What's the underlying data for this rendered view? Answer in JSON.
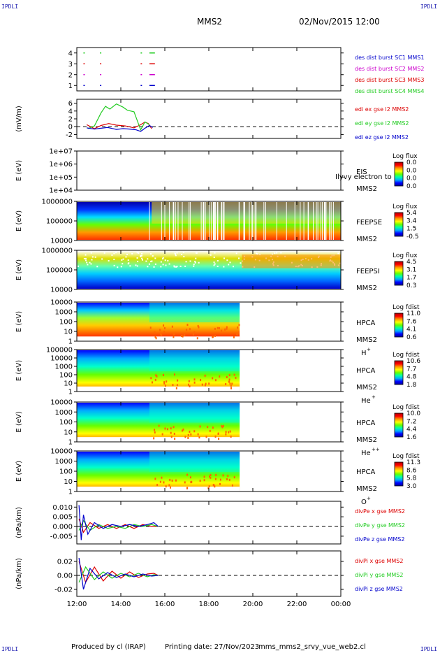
{
  "corners": {
    "tl": "IPDLI",
    "tr": "IPDLI",
    "bl": "IPDLI",
    "br": "IPDLI"
  },
  "header": {
    "spacecraft": "MMS2",
    "datetime": "02/Nov/2015 12:00"
  },
  "footer": {
    "produced": "Produced by cl (IRAP)",
    "printing": "Printing date: 27/Nov/2023",
    "script": "mms_mms2_srvy_vue_web2.cl"
  },
  "colors": {
    "red": "#dd0000",
    "green": "#22cc22",
    "blue": "#0000cc",
    "magenta": "#cc00cc",
    "spectrogram": [
      "#000099",
      "#0000ff",
      "#00aaff",
      "#00ffaa",
      "#66ff00",
      "#ffff00",
      "#ff9900",
      "#ff0000",
      "#b00000"
    ]
  },
  "chart_data": {
    "x_tick_labels": [
      "12:00",
      "14:00",
      "16:00",
      "18:00",
      "20:00",
      "22:00",
      "00:00"
    ],
    "x_ticks_hours": [
      12,
      14,
      16,
      18,
      20,
      22,
      24
    ],
    "x_range_hours": [
      12,
      24
    ],
    "panels": [
      {
        "id": "des-dist",
        "type": "availability",
        "ylabel": "",
        "ytick_labels": [
          "4",
          "3",
          "2",
          "1"
        ],
        "ylim": [
          0.5,
          4.5
        ],
        "legend": [
          {
            "text": "des dist burst SC1 MMS1",
            "color": "blue"
          },
          {
            "text": "des dist burst SC2 MMS2",
            "color": "magenta"
          },
          {
            "text": "des dist burst SC3 MMS3",
            "color": "red"
          },
          {
            "text": "des dist burst SC4 MMS4",
            "color": "green"
          }
        ],
        "rows": [
          {
            "y": 4,
            "color": "green",
            "intervals": [
              [
                12.3,
                12.35
              ],
              [
                13.05,
                13.1
              ],
              [
                14.9,
                14.95
              ],
              [
                15.3,
                15.55
              ]
            ]
          },
          {
            "y": 3,
            "color": "red",
            "intervals": [
              [
                12.3,
                12.35
              ],
              [
                13.05,
                13.1
              ],
              [
                14.9,
                14.95
              ],
              [
                15.3,
                15.55
              ]
            ]
          },
          {
            "y": 2,
            "color": "magenta",
            "intervals": [
              [
                12.3,
                12.35
              ],
              [
                13.05,
                13.1
              ],
              [
                14.9,
                14.95
              ],
              [
                15.3,
                15.55
              ]
            ]
          },
          {
            "y": 1,
            "color": "blue",
            "intervals": [
              [
                12.3,
                12.35
              ],
              [
                13.05,
                13.1
              ],
              [
                14.9,
                14.95
              ],
              [
                15.3,
                15.55
              ]
            ]
          }
        ]
      },
      {
        "id": "edi",
        "type": "line",
        "ylabel": "(mV/m)",
        "ytick_labels": [
          "6",
          "4",
          "2",
          "0",
          "-2"
        ],
        "ytick_values": [
          6,
          4,
          2,
          0,
          -2
        ],
        "ylim": [
          -3,
          7
        ],
        "zero_line": true,
        "legend": [
          {
            "text": "edi ex gse l2 MMS2",
            "color": "red"
          },
          {
            "text": "edi ey gse l2 MMS2",
            "color": "green"
          },
          {
            "text": "edi ez gse l2 MMS2",
            "color": "blue"
          }
        ],
        "series": [
          {
            "name": "edi ex gse l2 MMS2",
            "color": "red",
            "x": [
              12.45,
              12.8,
              13.1,
              13.45,
              13.8,
              14.2,
              14.6,
              14.9,
              15.1,
              15.25,
              15.4
            ],
            "y": [
              0.5,
              -0.5,
              0.3,
              0.8,
              0.4,
              0.2,
              -0.3,
              0.5,
              1.2,
              0.8,
              -0.5
            ]
          },
          {
            "name": "edi ey gse l2 MMS2",
            "color": "green",
            "x": [
              12.5,
              12.8,
              13.1,
              13.3,
              13.5,
              13.8,
              14.1,
              14.3,
              14.6,
              14.9,
              15.1,
              15.3
            ],
            "y": [
              -0.5,
              0.2,
              3.5,
              5.2,
              4.5,
              5.8,
              5.0,
              4.2,
              3.8,
              -0.8,
              1.2,
              0.5
            ]
          },
          {
            "name": "edi ez gse l2 MMS2",
            "color": "blue",
            "x": [
              12.45,
              12.8,
              13.1,
              13.4,
              13.8,
              14.1,
              14.4,
              14.7,
              14.9,
              15.1,
              15.3,
              15.45
            ],
            "y": [
              -0.3,
              -0.6,
              -0.4,
              -0.2,
              -0.7,
              -0.5,
              -0.6,
              -0.8,
              -1.2,
              -0.4,
              0.3,
              -0.2
            ]
          }
        ]
      },
      {
        "id": "eis",
        "type": "spectrogram",
        "empty": true,
        "ylabel": "E (eV)",
        "ytick_labels": [
          "1e+07",
          "1e+06",
          "1e+05",
          "1e+04"
        ],
        "instrument": "EIS",
        "spacecraft": "MMS2",
        "overlay_text": "Ilyvy electron to",
        "colorbar_title": "Log flux",
        "colorbar_labels": [
          "0.0",
          "0.0",
          "0.0",
          "0.0"
        ]
      },
      {
        "id": "feepse",
        "type": "spectrogram",
        "ylabel": "E (eV)",
        "ytick_labels": [
          "1000000",
          "100000",
          "10000"
        ],
        "instrument": "FEEPSE",
        "spacecraft": "MMS2",
        "colorbar_title": "Log flux",
        "colorbar_labels": [
          "5.4",
          "3.4",
          "1.5",
          "-0.5"
        ],
        "coverage_hours": [
          12,
          24
        ]
      },
      {
        "id": "feepsi",
        "type": "spectrogram",
        "ylabel": "E (eV)",
        "ytick_labels": [
          "1000000",
          "100000",
          "10000"
        ],
        "instrument": "FEEPSI",
        "spacecraft": "MMS2",
        "colorbar_title": "Log flux",
        "colorbar_labels": [
          "4.5",
          "3.1",
          "1.7",
          "0.3"
        ],
        "coverage_hours": [
          12,
          24
        ]
      },
      {
        "id": "hpca-h",
        "type": "spectrogram",
        "ylabel": "E (eV)",
        "ytick_labels": [
          "10000",
          "1000",
          "100",
          "10",
          "1"
        ],
        "instrument": "HPCA",
        "spacecraft": "MMS2",
        "species": "H",
        "species_sup": "+",
        "colorbar_title": "Log fdist",
        "colorbar_labels": [
          "11.0",
          "7.6",
          "4.1",
          "0.6"
        ],
        "coverage_hours": [
          12,
          19.4
        ]
      },
      {
        "id": "hpca-he",
        "type": "spectrogram",
        "ylabel": "E (eV)",
        "ytick_labels": [
          "100000",
          "10000",
          "1000",
          "100",
          "10",
          "1"
        ],
        "instrument": "HPCA",
        "spacecraft": "MMS2",
        "species": "He",
        "species_sup": "+",
        "colorbar_title": "Log fdist",
        "colorbar_labels": [
          "10.6",
          "7.7",
          "4.8",
          "1.8"
        ],
        "coverage_hours": [
          12,
          19.4
        ]
      },
      {
        "id": "hpca-he2",
        "type": "spectrogram",
        "ylabel": "E (eV)",
        "ytick_labels": [
          "10000",
          "1000",
          "100",
          "10",
          "1"
        ],
        "instrument": "HPCA",
        "spacecraft": "MMS2",
        "species": "He",
        "species_sup": "++",
        "colorbar_title": "Log fdist",
        "colorbar_labels": [
          "10.0",
          "7.2",
          "4.4",
          "1.6"
        ],
        "coverage_hours": [
          12,
          19.4
        ]
      },
      {
        "id": "hpca-o",
        "type": "spectrogram",
        "ylabel": "E (eV)",
        "ytick_labels": [
          "10000",
          "1000",
          "100",
          "10",
          "1"
        ],
        "instrument": "HPCA",
        "spacecraft": "MMS2",
        "species": "O",
        "species_sup": "+",
        "colorbar_title": "Log fdist",
        "colorbar_labels": [
          "11.3",
          "8.6",
          "5.8",
          "3.0"
        ],
        "coverage_hours": [
          12,
          19.4
        ]
      },
      {
        "id": "divpe",
        "type": "line",
        "ylabel": "(nPa/km)",
        "ytick_labels": [
          "0.010",
          "0.005",
          "0.000",
          "-0.005"
        ],
        "ytick_values": [
          0.01,
          0.005,
          0,
          -0.005
        ],
        "ylim": [
          -0.009,
          0.013
        ],
        "zero_line": true,
        "legend": [
          {
            "text": "divPe x gse MMS2",
            "color": "red"
          },
          {
            "text": "divPe y gse MMS2",
            "color": "green"
          },
          {
            "text": "divPe z gse MMS2",
            "color": "blue"
          }
        ],
        "series": [
          {
            "name": "divPe x gse MMS2",
            "color": "red",
            "x": [
              12.1,
              12.3,
              12.6,
              13.0,
              13.4,
              13.8,
              14.2,
              14.6,
              15.0,
              15.4,
              15.7
            ],
            "y": [
              0.004,
              -0.003,
              0.002,
              -0.001,
              0.001,
              -0.001,
              0.001,
              -0.001,
              0.001,
              0.0,
              0.0
            ]
          },
          {
            "name": "divPe y gse MMS2",
            "color": "green",
            "x": [
              12.1,
              12.3,
              12.6,
              13.0,
              13.4,
              13.8,
              14.2,
              14.6,
              15.0,
              15.4,
              15.7
            ],
            "y": [
              -0.002,
              0.003,
              -0.002,
              0.001,
              -0.001,
              0.0,
              -0.001,
              0.001,
              0.0,
              0.001,
              0.0
            ]
          },
          {
            "name": "divPe z gse MMS2",
            "color": "blue",
            "x": [
              12.1,
              12.2,
              12.3,
              12.5,
              12.8,
              13.2,
              13.6,
              14.0,
              14.4,
              14.8,
              15.2,
              15.5,
              15.7
            ],
            "y": [
              0.011,
              -0.007,
              0.006,
              -0.004,
              0.002,
              -0.001,
              0.001,
              0.0,
              0.001,
              0.0,
              0.001,
              0.002,
              0.0
            ]
          }
        ]
      },
      {
        "id": "divpi",
        "type": "line",
        "ylabel": "(nPa/km)",
        "ytick_labels": [
          "0.02",
          "0.00",
          "-0.02"
        ],
        "ytick_values": [
          0.02,
          0,
          -0.02
        ],
        "ylim": [
          -0.03,
          0.035
        ],
        "zero_line": true,
        "legend": [
          {
            "text": "divPi x gse MMS2",
            "color": "red"
          },
          {
            "text": "divPi y gse MMS2",
            "color": "green"
          },
          {
            "text": "divPi z gse MMS2",
            "color": "blue"
          }
        ],
        "series": [
          {
            "name": "divPi x gse MMS2",
            "color": "red",
            "x": [
              12.1,
              12.4,
              12.8,
              13.2,
              13.6,
              14.0,
              14.4,
              14.8,
              15.2,
              15.5,
              15.7
            ],
            "y": [
              0.02,
              -0.01,
              0.012,
              -0.008,
              0.006,
              -0.004,
              0.005,
              -0.003,
              0.002,
              0.003,
              0.0
            ]
          },
          {
            "name": "divPi y gse MMS2",
            "color": "green",
            "x": [
              12.1,
              12.4,
              12.8,
              13.2,
              13.6,
              14.0,
              14.4,
              14.8,
              15.2,
              15.5,
              15.7
            ],
            "y": [
              -0.01,
              0.012,
              -0.006,
              0.005,
              -0.004,
              0.003,
              -0.002,
              0.003,
              -0.002,
              0.001,
              0.0
            ]
          },
          {
            "name": "divPi z gse MMS2",
            "color": "blue",
            "x": [
              12.1,
              12.3,
              12.6,
              13.0,
              13.4,
              13.8,
              14.2,
              14.6,
              15.0,
              15.4,
              15.7
            ],
            "y": [
              0.025,
              -0.02,
              0.01,
              -0.005,
              0.004,
              -0.003,
              0.002,
              -0.002,
              0.002,
              -0.001,
              0.0
            ]
          }
        ]
      }
    ]
  }
}
